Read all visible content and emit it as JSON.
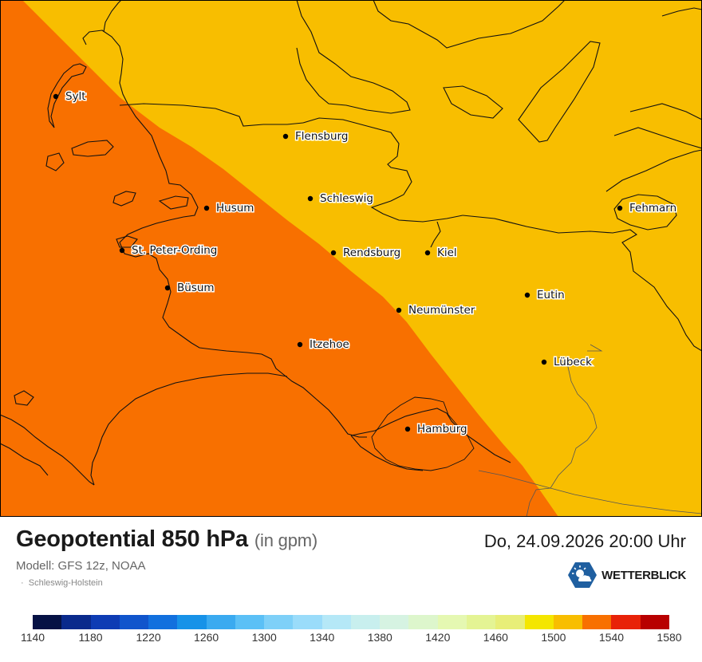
{
  "title": "Geopotential 850 hPa",
  "unit": "(in gpm)",
  "model": "Modell: GFS 12z, NOAA",
  "region": "Schleswig-Holstein",
  "datetime": "Do, 24.09.2026 20:00 Uhr",
  "brand": {
    "name": "WETTERBLICK",
    "icon": "sun-cloud-logo-icon"
  },
  "colors": {
    "field_high": "#F8BE00",
    "field_low": "#F87000",
    "coastline": "#111111"
  },
  "cities": [
    {
      "name": "Sylt"
    },
    {
      "name": "Flensburg"
    },
    {
      "name": "Schleswig"
    },
    {
      "name": "Husum"
    },
    {
      "name": "Fehmarn"
    },
    {
      "name": "St. Peter-Ording"
    },
    {
      "name": "Rendsburg"
    },
    {
      "name": "Kiel"
    },
    {
      "name": "Büsum"
    },
    {
      "name": "Eutin"
    },
    {
      "name": "Neumünster"
    },
    {
      "name": "Itzehoe"
    },
    {
      "name": "Lübeck"
    },
    {
      "name": "Hamburg"
    }
  ],
  "legend": {
    "colors": [
      "#061245",
      "#0A2A8C",
      "#0E3CB4",
      "#1055CC",
      "#1270DE",
      "#1792E8",
      "#3AAAF0",
      "#5BC0F6",
      "#7ED0F8",
      "#9ADCFA",
      "#B5E8F7",
      "#C8EFEE",
      "#D6F3E2",
      "#DDF6CC",
      "#E5F8B2",
      "#E4F494",
      "#E8EE78",
      "#F4E600",
      "#F8BE00",
      "#F87000",
      "#E82208",
      "#B80000"
    ],
    "ticks": [
      "1140",
      "1180",
      "1220",
      "1260",
      "1300",
      "1340",
      "1380",
      "1420",
      "1460",
      "1500",
      "1540",
      "1580"
    ]
  }
}
